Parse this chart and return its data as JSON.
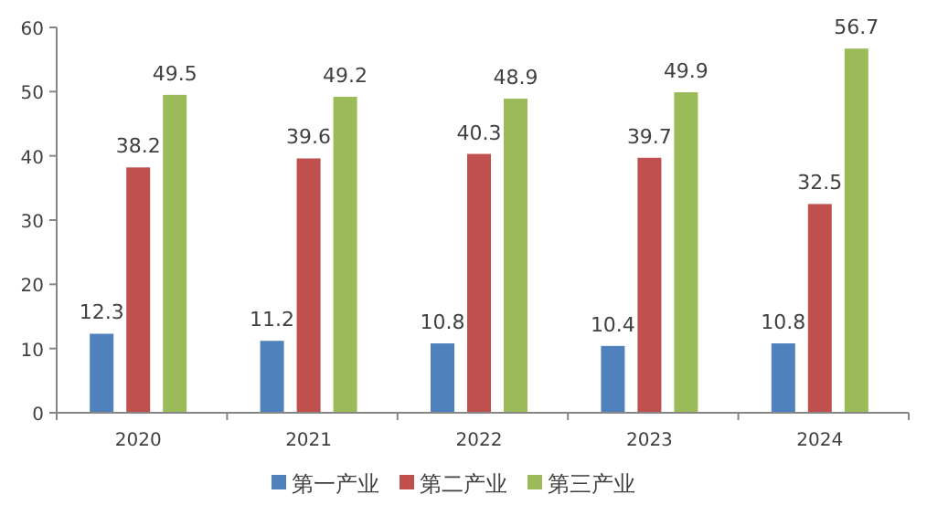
{
  "chart_data": {
    "type": "bar",
    "categories": [
      "2020",
      "2021",
      "2022",
      "2023",
      "2024"
    ],
    "series": [
      {
        "name": "第一产业",
        "color": "#4f81bd",
        "values": [
          12.3,
          11.2,
          10.8,
          10.4,
          10.8
        ]
      },
      {
        "name": "第二产业",
        "color": "#c0504d",
        "values": [
          38.2,
          39.6,
          40.3,
          39.7,
          32.5
        ]
      },
      {
        "name": "第三产业",
        "color": "#9bbb59",
        "values": [
          49.5,
          49.2,
          48.9,
          49.9,
          56.7
        ]
      }
    ],
    "ylim": [
      0,
      60
    ],
    "yticks": [
      0,
      10,
      20,
      30,
      40,
      50,
      60
    ],
    "data_labels": true,
    "legend": "bottom",
    "grid": false
  }
}
